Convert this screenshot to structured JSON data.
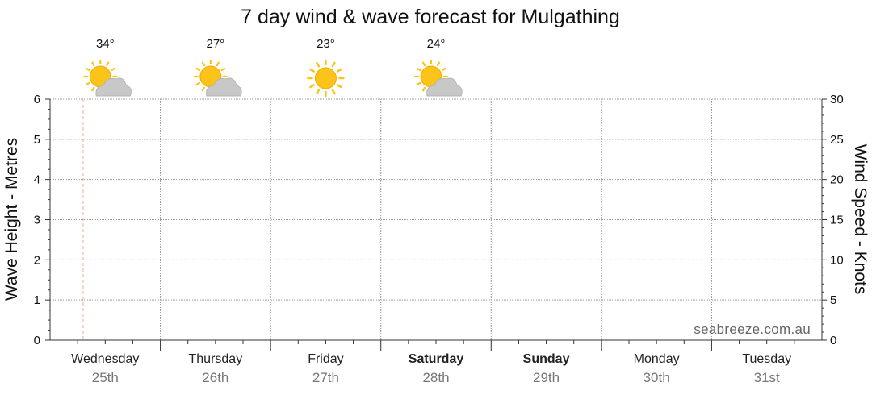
{
  "chart_data": {
    "type": "line",
    "title": "7 day wind & wave forecast for Mulgathing",
    "ylabel_left": "Wave Height - Metres",
    "ylabel_right": "Wind Speed - Knots",
    "ylim_left": [
      0,
      6
    ],
    "ylim_right": [
      0,
      30
    ],
    "yticks_left": [
      "0",
      "1",
      "2",
      "3",
      "4",
      "5",
      "6"
    ],
    "yticks_right": [
      "0",
      "5",
      "10",
      "15",
      "20",
      "25",
      "30"
    ],
    "grid": true,
    "days": [
      {
        "day": "Wednesday",
        "date": "25th",
        "bold": false
      },
      {
        "day": "Thursday",
        "date": "26th",
        "bold": false
      },
      {
        "day": "Friday",
        "date": "27th",
        "bold": false
      },
      {
        "day": "Saturday",
        "date": "28th",
        "bold": true
      },
      {
        "day": "Sunday",
        "date": "29th",
        "bold": true
      },
      {
        "day": "Monday",
        "date": "30th",
        "bold": false
      },
      {
        "day": "Tuesday",
        "date": "31st",
        "bold": false
      }
    ],
    "weather": [
      {
        "day_index": 0,
        "temp": "34°",
        "icon": "partly-cloudy-icon"
      },
      {
        "day_index": 1,
        "temp": "27°",
        "icon": "partly-cloudy-icon"
      },
      {
        "day_index": 2,
        "temp": "23°",
        "icon": "sunny-icon"
      },
      {
        "day_index": 3,
        "temp": "24°",
        "icon": "partly-cloudy-icon"
      }
    ],
    "current_time_day_fraction": 0.3,
    "series": []
  },
  "watermark": "seabreeze.com.au",
  "colors": {
    "grid": "#999999",
    "now_line": "#f0a8a0",
    "sun": "#fcc419",
    "cloud": "#c8c8c8"
  }
}
